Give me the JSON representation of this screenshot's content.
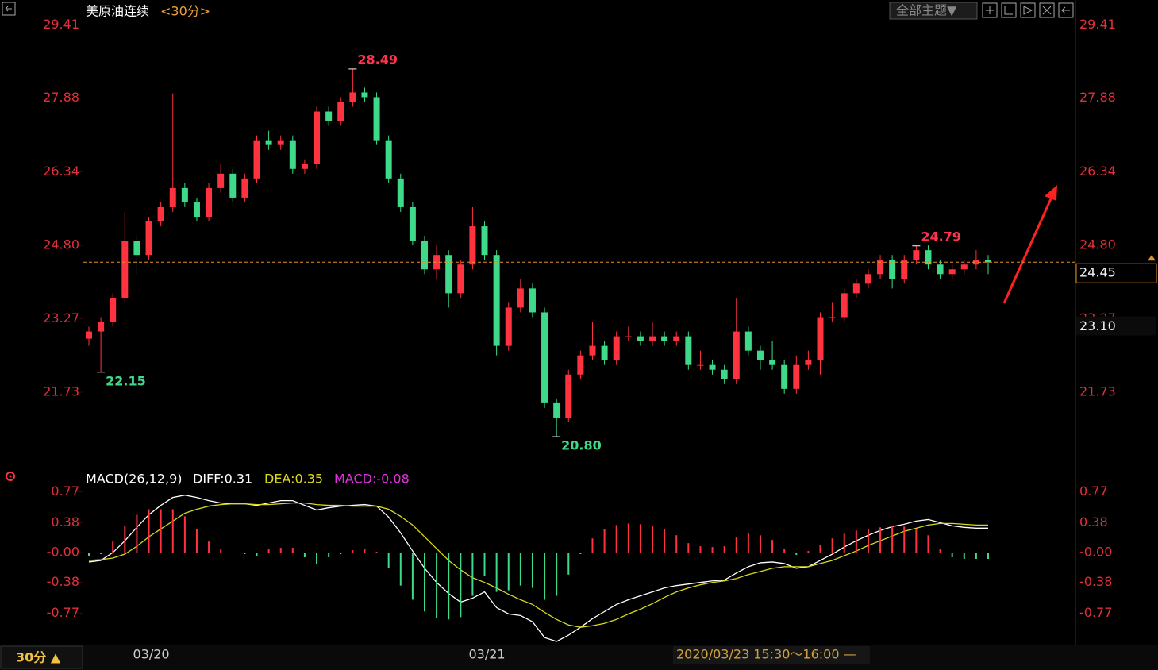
{
  "header": {
    "title": "美原油连续",
    "period": "<30分>",
    "theme_button": "全部主题▼"
  },
  "chart_data": [
    {
      "type": "candlestick",
      "title": "美原油连续",
      "up_color": "#ff3340",
      "down_color": "#3fd98a",
      "ylim": [
        20.17,
        29.9
      ],
      "yticks": [
        29.41,
        27.88,
        26.34,
        {
          "value": 24.8,
          "label": "24.80"
        },
        23.27,
        21.73
      ],
      "categories": [
        null,
        null,
        null,
        null,
        null,
        "03/20",
        null,
        null,
        null,
        null,
        null,
        null,
        null,
        null,
        null,
        null,
        null,
        null,
        null,
        null,
        null,
        null,
        null,
        null,
        null,
        null,
        null,
        null,
        null,
        null,
        null,
        null,
        null,
        "03/21",
        null,
        null,
        null,
        null,
        null,
        null,
        null,
        null,
        null,
        null,
        null,
        null,
        null,
        null,
        null,
        null,
        null,
        null,
        null,
        null,
        null,
        null,
        null,
        null,
        null,
        null,
        null,
        null,
        null,
        null,
        null,
        null,
        null,
        null,
        null,
        null,
        null,
        null,
        null,
        null,
        null,
        null
      ],
      "ohlc": [
        [
          22.85,
          23.1,
          22.7,
          23.0
        ],
        [
          23.0,
          23.3,
          22.15,
          23.2
        ],
        [
          23.2,
          23.8,
          23.1,
          23.7
        ],
        [
          23.7,
          25.5,
          23.6,
          24.9
        ],
        [
          24.9,
          25.0,
          24.2,
          24.6
        ],
        [
          24.6,
          25.4,
          24.5,
          25.3
        ],
        [
          25.3,
          25.7,
          25.2,
          25.6
        ],
        [
          25.6,
          27.98,
          25.5,
          26.0
        ],
        [
          26.0,
          26.1,
          25.6,
          25.7
        ],
        [
          25.7,
          25.8,
          25.3,
          25.4
        ],
        [
          25.4,
          26.1,
          25.3,
          26.0
        ],
        [
          26.0,
          26.5,
          25.9,
          26.3
        ],
        [
          26.3,
          26.4,
          25.7,
          25.8
        ],
        [
          25.8,
          26.3,
          25.7,
          26.2
        ],
        [
          26.2,
          27.1,
          26.1,
          27.0
        ],
        [
          27.0,
          27.2,
          26.8,
          26.9
        ],
        [
          26.9,
          27.1,
          26.8,
          27.0
        ],
        [
          27.0,
          27.1,
          26.3,
          26.4
        ],
        [
          26.4,
          26.6,
          26.3,
          26.5
        ],
        [
          26.5,
          27.7,
          26.4,
          27.6
        ],
        [
          27.6,
          27.7,
          27.3,
          27.4
        ],
        [
          27.4,
          27.9,
          27.3,
          27.8
        ],
        [
          27.8,
          28.49,
          27.7,
          28.0
        ],
        [
          28.0,
          28.1,
          27.8,
          27.9
        ],
        [
          27.9,
          28.0,
          26.9,
          27.0
        ],
        [
          27.0,
          27.1,
          26.1,
          26.2
        ],
        [
          26.2,
          26.3,
          25.5,
          25.6
        ],
        [
          25.6,
          25.7,
          24.8,
          24.9
        ],
        [
          24.9,
          25.0,
          24.2,
          24.3
        ],
        [
          24.3,
          24.8,
          24.1,
          24.6
        ],
        [
          24.6,
          24.7,
          23.5,
          23.8
        ],
        [
          23.8,
          24.5,
          23.7,
          24.4
        ],
        [
          24.4,
          25.6,
          24.3,
          25.2
        ],
        [
          25.2,
          25.3,
          24.5,
          24.6
        ],
        [
          24.6,
          24.7,
          22.5,
          22.7
        ],
        [
          22.7,
          23.6,
          22.6,
          23.5
        ],
        [
          23.5,
          24.1,
          23.4,
          23.9
        ],
        [
          23.9,
          24.0,
          23.3,
          23.4
        ],
        [
          23.4,
          23.5,
          21.4,
          21.5
        ],
        [
          21.5,
          21.6,
          20.8,
          21.2
        ],
        [
          21.2,
          22.2,
          21.1,
          22.1
        ],
        [
          22.1,
          22.6,
          22.0,
          22.5
        ],
        [
          22.5,
          23.2,
          22.4,
          22.7
        ],
        [
          22.7,
          22.8,
          22.3,
          22.4
        ],
        [
          22.4,
          23.0,
          22.3,
          22.9
        ],
        [
          22.9,
          23.1,
          22.8,
          22.9
        ],
        [
          22.9,
          23.0,
          22.7,
          22.8
        ],
        [
          22.8,
          23.2,
          22.7,
          22.9
        ],
        [
          22.9,
          23.0,
          22.7,
          22.8
        ],
        [
          22.8,
          23.0,
          22.7,
          22.9
        ],
        [
          22.9,
          23.0,
          22.2,
          22.3
        ],
        [
          22.3,
          22.6,
          22.2,
          22.3
        ],
        [
          22.3,
          22.4,
          22.1,
          22.2
        ],
        [
          22.2,
          22.3,
          21.9,
          22.0
        ],
        [
          22.0,
          23.7,
          21.9,
          23.0
        ],
        [
          23.0,
          23.1,
          22.5,
          22.6
        ],
        [
          22.6,
          22.7,
          22.2,
          22.4
        ],
        [
          22.4,
          22.8,
          22.2,
          22.3
        ],
        [
          22.3,
          22.4,
          21.7,
          21.8
        ],
        [
          21.8,
          22.5,
          21.7,
          22.3
        ],
        [
          22.3,
          22.6,
          22.2,
          22.4
        ],
        [
          22.4,
          23.4,
          22.1,
          23.3
        ],
        [
          23.3,
          23.6,
          23.2,
          23.3
        ],
        [
          23.3,
          23.9,
          23.2,
          23.8
        ],
        [
          23.8,
          24.1,
          23.7,
          24.0
        ],
        [
          24.0,
          24.3,
          23.9,
          24.2
        ],
        [
          24.2,
          24.6,
          24.1,
          24.5
        ],
        [
          24.5,
          24.6,
          23.9,
          24.1
        ],
        [
          24.1,
          24.6,
          24.0,
          24.5
        ],
        [
          24.5,
          24.79,
          24.4,
          24.7
        ],
        [
          24.7,
          24.8,
          24.3,
          24.4
        ],
        [
          24.4,
          24.5,
          24.1,
          24.2
        ],
        [
          24.2,
          24.4,
          24.1,
          24.3
        ],
        [
          24.3,
          24.5,
          24.2,
          24.4
        ],
        [
          24.4,
          24.7,
          24.3,
          24.5
        ],
        [
          24.5,
          24.6,
          24.2,
          24.45
        ]
      ],
      "annotations": [
        {
          "value": 28.49,
          "label": "28.49",
          "color": "#ff3350"
        },
        {
          "value": 22.15,
          "label": "22.15",
          "color": "#3fd98a"
        },
        {
          "value": 20.8,
          "label": "20.80",
          "color": "#3fd98a"
        },
        {
          "value": 24.79,
          "label": "24.79",
          "color": "#ff3350"
        }
      ],
      "price_line": 24.45,
      "price_line_color": "#e0922a",
      "ref_price": {
        "value": 23.1,
        "label": "23.10"
      }
    },
    {
      "type": "macd",
      "title": "MACD(26,12,9)",
      "ylim": [
        -1.17,
        1.07
      ],
      "yticks": [
        0.77,
        0.38,
        {
          "value": 0,
          "label": "-0.00"
        },
        -0.38,
        -0.77
      ],
      "series": [
        {
          "name": "DIFF:0.31",
          "color": "#ffffff",
          "values": [
            -0.12,
            -0.1,
            0.0,
            0.15,
            0.32,
            0.48,
            0.6,
            0.7,
            0.73,
            0.7,
            0.66,
            0.63,
            0.62,
            0.62,
            0.6,
            0.63,
            0.66,
            0.66,
            0.6,
            0.54,
            0.57,
            0.59,
            0.6,
            0.61,
            0.59,
            0.45,
            0.25,
            0.02,
            -0.2,
            -0.38,
            -0.52,
            -0.63,
            -0.58,
            -0.5,
            -0.7,
            -0.78,
            -0.8,
            -0.88,
            -1.08,
            -1.13,
            -1.05,
            -0.95,
            -0.84,
            -0.75,
            -0.66,
            -0.6,
            -0.55,
            -0.5,
            -0.45,
            -0.42,
            -0.4,
            -0.38,
            -0.36,
            -0.35,
            -0.26,
            -0.18,
            -0.13,
            -0.12,
            -0.14,
            -0.2,
            -0.18,
            -0.1,
            -0.02,
            0.07,
            0.15,
            0.22,
            0.28,
            0.33,
            0.36,
            0.4,
            0.42,
            0.38,
            0.34,
            0.32,
            0.31,
            0.31
          ]
        },
        {
          "name": "DEA:0.35",
          "color": "#d8d81e",
          "values": [
            -0.1,
            -0.09,
            -0.07,
            -0.02,
            0.08,
            0.2,
            0.3,
            0.4,
            0.5,
            0.55,
            0.59,
            0.61,
            0.62,
            0.62,
            0.61,
            0.61,
            0.62,
            0.63,
            0.63,
            0.61,
            0.6,
            0.6,
            0.59,
            0.59,
            0.59,
            0.55,
            0.46,
            0.35,
            0.2,
            0.05,
            -0.1,
            -0.22,
            -0.32,
            -0.38,
            -0.45,
            -0.53,
            -0.6,
            -0.66,
            -0.76,
            -0.85,
            -0.92,
            -0.95,
            -0.93,
            -0.9,
            -0.85,
            -0.78,
            -0.72,
            -0.65,
            -0.57,
            -0.5,
            -0.45,
            -0.41,
            -0.38,
            -0.36,
            -0.33,
            -0.28,
            -0.24,
            -0.2,
            -0.18,
            -0.18,
            -0.18,
            -0.14,
            -0.1,
            -0.04,
            0.02,
            0.09,
            0.15,
            0.21,
            0.27,
            0.31,
            0.35,
            0.37,
            0.37,
            0.36,
            0.35,
            0.35
          ]
        },
        {
          "name": "MACD:-0.08",
          "color": "#e030e0",
          "type": "bar",
          "up_color": "#ff3340",
          "down_color": "#3fd98a",
          "values": [
            -0.05,
            -0.02,
            0.14,
            0.34,
            0.48,
            0.55,
            0.55,
            0.55,
            0.46,
            0.3,
            0.14,
            0.04,
            0.0,
            -0.02,
            -0.04,
            0.04,
            0.06,
            0.06,
            -0.06,
            -0.15,
            -0.06,
            -0.02,
            0.03,
            0.05,
            0.01,
            -0.2,
            -0.42,
            -0.6,
            -0.75,
            -0.83,
            -0.85,
            -0.82,
            -0.55,
            -0.3,
            -0.5,
            -0.48,
            -0.42,
            -0.45,
            -0.6,
            -0.55,
            -0.28,
            -0.02,
            0.18,
            0.3,
            0.35,
            0.37,
            0.36,
            0.34,
            0.3,
            0.22,
            0.12,
            0.08,
            0.07,
            0.08,
            0.2,
            0.25,
            0.22,
            0.16,
            0.05,
            -0.03,
            0.02,
            0.1,
            0.18,
            0.24,
            0.28,
            0.3,
            0.32,
            0.34,
            0.33,
            0.3,
            0.22,
            0.05,
            -0.06,
            -0.08,
            -0.08,
            -0.08
          ]
        }
      ]
    }
  ],
  "footer": {
    "period": "30分 ▲",
    "time_range": "2020/03/23 15:30～16:00 —"
  }
}
